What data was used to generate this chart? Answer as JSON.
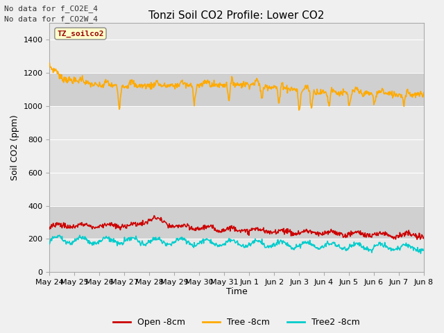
{
  "title": "Tonzi Soil CO2 Profile: Lower CO2",
  "ylabel": "Soil CO2 (ppm)",
  "xlabel": "Time",
  "top_text_1": "No data for f_CO2E_4",
  "top_text_2": "No data for f_CO2W_4",
  "legend_label": "TZ_soilco2",
  "ylim": [
    0,
    1500
  ],
  "yticks": [
    0,
    200,
    400,
    600,
    800,
    1000,
    1200,
    1400
  ],
  "xtick_labels": [
    "May 24",
    "May 25",
    "May 26",
    "May 27",
    "May 28",
    "May 29",
    "May 30",
    "May 31",
    "Jun 1",
    "Jun 2",
    "Jun 3",
    "Jun 4",
    "Jun 5",
    "Jun 6",
    "Jun 7",
    "Jun 8"
  ],
  "shaded_band_lo": 1000,
  "shaded_band_hi": 1200,
  "shaded_band2_lo": 200,
  "shaded_band2_hi": 400,
  "series_labels": [
    "Open -8cm",
    "Tree -8cm",
    "Tree2 -8cm"
  ],
  "series_colors": [
    "#cc0000",
    "#ffaa00",
    "#00cccc"
  ],
  "background_color": "#f0f0f0",
  "plot_bg_color": "#e8e8e8",
  "band_color": "#d0d0d0",
  "grid_color": "#ffffff",
  "title_fontsize": 11,
  "axis_label_fontsize": 9,
  "tick_fontsize": 8
}
